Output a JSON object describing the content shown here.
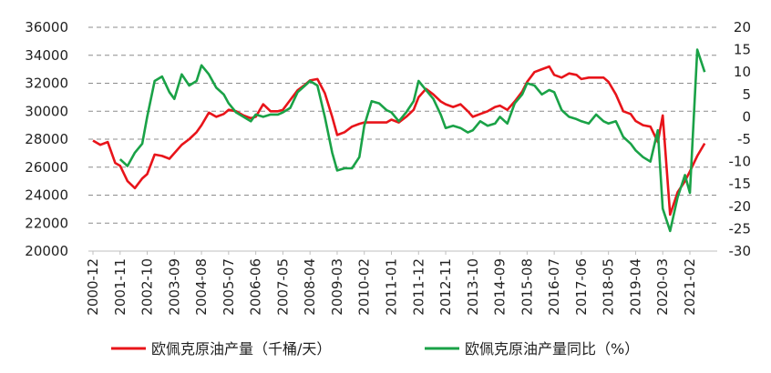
{
  "chart_data": {
    "type": "line",
    "title": "",
    "xlabel": "",
    "ylabel": "",
    "ylim": [
      20000,
      36000
    ],
    "y2lim": [
      -30,
      20
    ],
    "grid": "horizontal dashed",
    "legend_position": "bottom",
    "yticks": [
      "20000",
      "22000",
      "24000",
      "26000",
      "28000",
      "30000",
      "32000",
      "34000",
      "36000"
    ],
    "y2ticks": [
      "-30",
      "-25",
      "-20",
      "-15",
      "-10",
      "-5",
      "0",
      "5",
      "10",
      "15",
      "20"
    ],
    "xticks": [
      "2000-12",
      "2001-11",
      "2002-10",
      "2003-09",
      "2004-08",
      "2005-07",
      "2006-06",
      "2007-05",
      "2008-04",
      "2009-03",
      "2010-02",
      "2011-01",
      "2011-12",
      "2012-11",
      "2013-10",
      "2014-09",
      "2015-08",
      "2016-07",
      "2017-06",
      "2018-05",
      "2019-04",
      "2020-03",
      "2021-02"
    ],
    "x": [
      "2000-12",
      "2001-03",
      "2001-06",
      "2001-09",
      "2001-11",
      "2002-02",
      "2002-05",
      "2002-08",
      "2002-10",
      "2003-01",
      "2003-04",
      "2003-07",
      "2003-09",
      "2003-12",
      "2004-03",
      "2004-06",
      "2004-08",
      "2004-11",
      "2005-02",
      "2005-05",
      "2005-07",
      "2005-10",
      "2006-01",
      "2006-04",
      "2006-06",
      "2006-09",
      "2006-12",
      "2007-03",
      "2007-05",
      "2007-08",
      "2007-11",
      "2008-02",
      "2008-04",
      "2008-07",
      "2008-10",
      "2009-01",
      "2009-03",
      "2009-06",
      "2009-09",
      "2009-12",
      "2010-02",
      "2010-05",
      "2010-08",
      "2010-11",
      "2011-01",
      "2011-04",
      "2011-07",
      "2011-10",
      "2011-12",
      "2012-03",
      "2012-06",
      "2012-09",
      "2012-11",
      "2013-02",
      "2013-05",
      "2013-08",
      "2013-10",
      "2014-01",
      "2014-04",
      "2014-07",
      "2014-09",
      "2014-12",
      "2015-03",
      "2015-06",
      "2015-08",
      "2015-11",
      "2016-02",
      "2016-05",
      "2016-07",
      "2016-10",
      "2017-01",
      "2017-04",
      "2017-06",
      "2017-09",
      "2017-12",
      "2018-03",
      "2018-05",
      "2018-08",
      "2018-11",
      "2019-02",
      "2019-04",
      "2019-07",
      "2019-10",
      "2020-01",
      "2020-03",
      "2020-06",
      "2020-09",
      "2020-12",
      "2021-02",
      "2021-05",
      "2021-08"
    ],
    "series": [
      {
        "name": "欧佩克原油产量（千桶/天）",
        "axis": "left",
        "color": "#e8141a",
        "values": [
          27900,
          27600,
          27800,
          26300,
          26100,
          25000,
          24500,
          25200,
          25500,
          26900,
          26800,
          26600,
          27000,
          27600,
          28000,
          28500,
          29000,
          29900,
          29600,
          29800,
          30100,
          30000,
          29700,
          29500,
          29600,
          30500,
          30000,
          30000,
          30100,
          30800,
          31500,
          31900,
          32200,
          32300,
          31300,
          29600,
          28300,
          28500,
          28900,
          29100,
          29200,
          29200,
          29200,
          29200,
          29400,
          29200,
          29600,
          30100,
          31000,
          31600,
          31200,
          30700,
          30500,
          30300,
          30500,
          30000,
          29600,
          29800,
          30000,
          30300,
          30400,
          30100,
          30700,
          31400,
          32100,
          32800,
          33000,
          33200,
          32600,
          32400,
          32700,
          32600,
          32300,
          32400,
          32400,
          32400,
          32100,
          31200,
          30000,
          29800,
          29300,
          29000,
          28900,
          27800,
          29700,
          22600,
          24200,
          25000,
          25700,
          26800,
          27700
        ]
      },
      {
        "name": "欧佩克原油产量同比（%）",
        "axis": "right",
        "color": "#1aa247",
        "values": [
          null,
          null,
          null,
          null,
          -9.5,
          -11.0,
          -8.0,
          -6.0,
          0.0,
          8.0,
          9.0,
          5.5,
          4.0,
          9.5,
          7.0,
          8.0,
          11.5,
          9.5,
          6.5,
          5.0,
          3.0,
          1.0,
          0.0,
          -1.0,
          0.5,
          0.0,
          0.5,
          0.5,
          1.0,
          2.0,
          5.5,
          7.0,
          8.0,
          7.0,
          0.0,
          -8.0,
          -12.0,
          -11.5,
          -11.5,
          -9.0,
          -2.0,
          3.5,
          3.0,
          1.5,
          1.0,
          -1.0,
          1.0,
          3.5,
          8.0,
          6.0,
          4.0,
          0.5,
          -2.5,
          -2.0,
          -2.5,
          -3.5,
          -3.0,
          -1.0,
          -2.0,
          -1.5,
          0.0,
          -1.5,
          3.0,
          5.0,
          7.5,
          7.0,
          5.0,
          6.0,
          5.5,
          1.5,
          0.0,
          -0.5,
          -1.0,
          -1.5,
          0.5,
          -1.0,
          -1.5,
          -1.0,
          -4.5,
          -6.0,
          -7.5,
          -9.0,
          -10.0,
          -3.0,
          -20.5,
          -25.5,
          -18.0,
          -13.0,
          -17.0,
          15.0,
          10.0
        ]
      }
    ]
  }
}
